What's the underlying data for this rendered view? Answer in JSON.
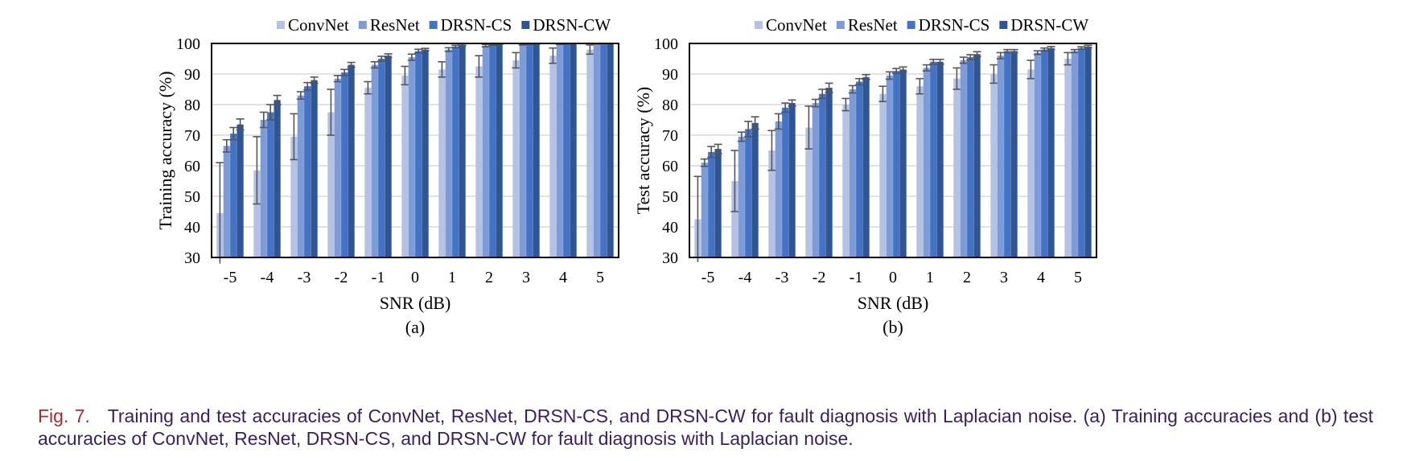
{
  "figure": {
    "caption_label": "Fig. 7.",
    "caption_text": "Training and test accuracies of ConvNet, ResNet, DRSN-CS, and DRSN-CW for fault diagnosis with Laplacian noise. (a) Training accuracies and (b) test accuracies of ConvNet, ResNet, DRSN-CS, and DRSN-CW for fault diagnosis with Laplacian noise."
  },
  "colors": {
    "ConvNet": "#b4c3e4",
    "ResNet": "#7e9bd6",
    "DRSN-CS": "#4472c4",
    "DRSN-CW": "#2f5597",
    "error_bar": "#555555",
    "grid": "#d9d9d9"
  },
  "chart_data": [
    {
      "type": "bar",
      "panel_label": "(a)",
      "xlabel": "SNR (dB)",
      "ylabel": "Training accuracy (%)",
      "ylim": [
        30,
        100
      ],
      "yticks": [
        30,
        40,
        50,
        60,
        70,
        80,
        90,
        100
      ],
      "grid": true,
      "legend_position": "top",
      "categories": [
        "-5",
        "-4",
        "-3",
        "-2",
        "-1",
        "0",
        "1",
        "2",
        "3",
        "4",
        "5"
      ],
      "series": [
        {
          "name": "ConvNet",
          "values": [
            44.5,
            58.5,
            69.5,
            77.5,
            85.5,
            89.5,
            91.5,
            92.5,
            94.5,
            96,
            98
          ],
          "errors": [
            16.5,
            11,
            7.5,
            7.5,
            2,
            3,
            2.5,
            3.5,
            2.5,
            2.5,
            1.5
          ]
        },
        {
          "name": "ResNet",
          "values": [
            66.5,
            75,
            83,
            88.5,
            93,
            95.5,
            98,
            99.3,
            99.7,
            99.8,
            99.9
          ],
          "errors": [
            2,
            2.5,
            1.2,
            1,
            1,
            1,
            0.6,
            0.4,
            0.2,
            0.1,
            0.1
          ]
        },
        {
          "name": "DRSN-CS",
          "values": [
            70.5,
            77.5,
            86,
            90.5,
            95,
            97.5,
            99,
            99.6,
            99.8,
            99.9,
            100
          ],
          "errors": [
            2,
            2.5,
            1.2,
            1,
            0.8,
            0.6,
            0.4,
            0.2,
            0.1,
            0.1,
            0
          ]
        },
        {
          "name": "DRSN-CW",
          "values": [
            73.5,
            81.5,
            88,
            93,
            96,
            98,
            99.5,
            99.8,
            99.9,
            100,
            100
          ],
          "errors": [
            1.8,
            1.5,
            1,
            0.8,
            0.6,
            0.4,
            0.3,
            0.1,
            0.1,
            0,
            0
          ]
        }
      ]
    },
    {
      "type": "bar",
      "panel_label": "(b)",
      "xlabel": "SNR (dB)",
      "ylabel": "Test accuracy (%)",
      "ylim": [
        30,
        100
      ],
      "yticks": [
        30,
        40,
        50,
        60,
        70,
        80,
        90,
        100
      ],
      "grid": true,
      "legend_position": "top",
      "categories": [
        "-5",
        "-4",
        "-3",
        "-2",
        "-1",
        "0",
        "1",
        "2",
        "3",
        "4",
        "5"
      ],
      "series": [
        {
          "name": "ConvNet",
          "values": [
            42.5,
            55,
            65,
            72.5,
            80,
            83.5,
            86,
            88.5,
            90,
            91.5,
            95
          ],
          "errors": [
            14,
            10,
            6.5,
            7,
            2,
            2.5,
            2.5,
            3.5,
            3,
            3,
            2
          ]
        },
        {
          "name": "ResNet",
          "values": [
            61,
            69.5,
            74.5,
            80.5,
            85,
            89.5,
            92,
            94.5,
            96,
            97,
            97.5
          ],
          "errors": [
            1.2,
            1.5,
            2.5,
            1.2,
            1.2,
            1.2,
            1,
            1,
            1,
            0.6,
            0.5
          ]
        },
        {
          "name": "DRSN-CS",
          "values": [
            64.5,
            72,
            79,
            83.5,
            87.5,
            91,
            94,
            95.5,
            97.5,
            98,
            98.5
          ],
          "errors": [
            1.8,
            2.5,
            1.5,
            1.5,
            1,
            0.8,
            0.8,
            0.8,
            0.5,
            0.5,
            0.4
          ]
        },
        {
          "name": "DRSN-CW",
          "values": [
            65.5,
            74,
            80.5,
            85.5,
            89,
            91.5,
            94,
            96.5,
            97.5,
            98.5,
            99
          ],
          "errors": [
            1.5,
            2,
            1,
            1.5,
            0.8,
            0.8,
            0.8,
            0.8,
            0.5,
            0.5,
            0.4
          ]
        }
      ]
    }
  ]
}
